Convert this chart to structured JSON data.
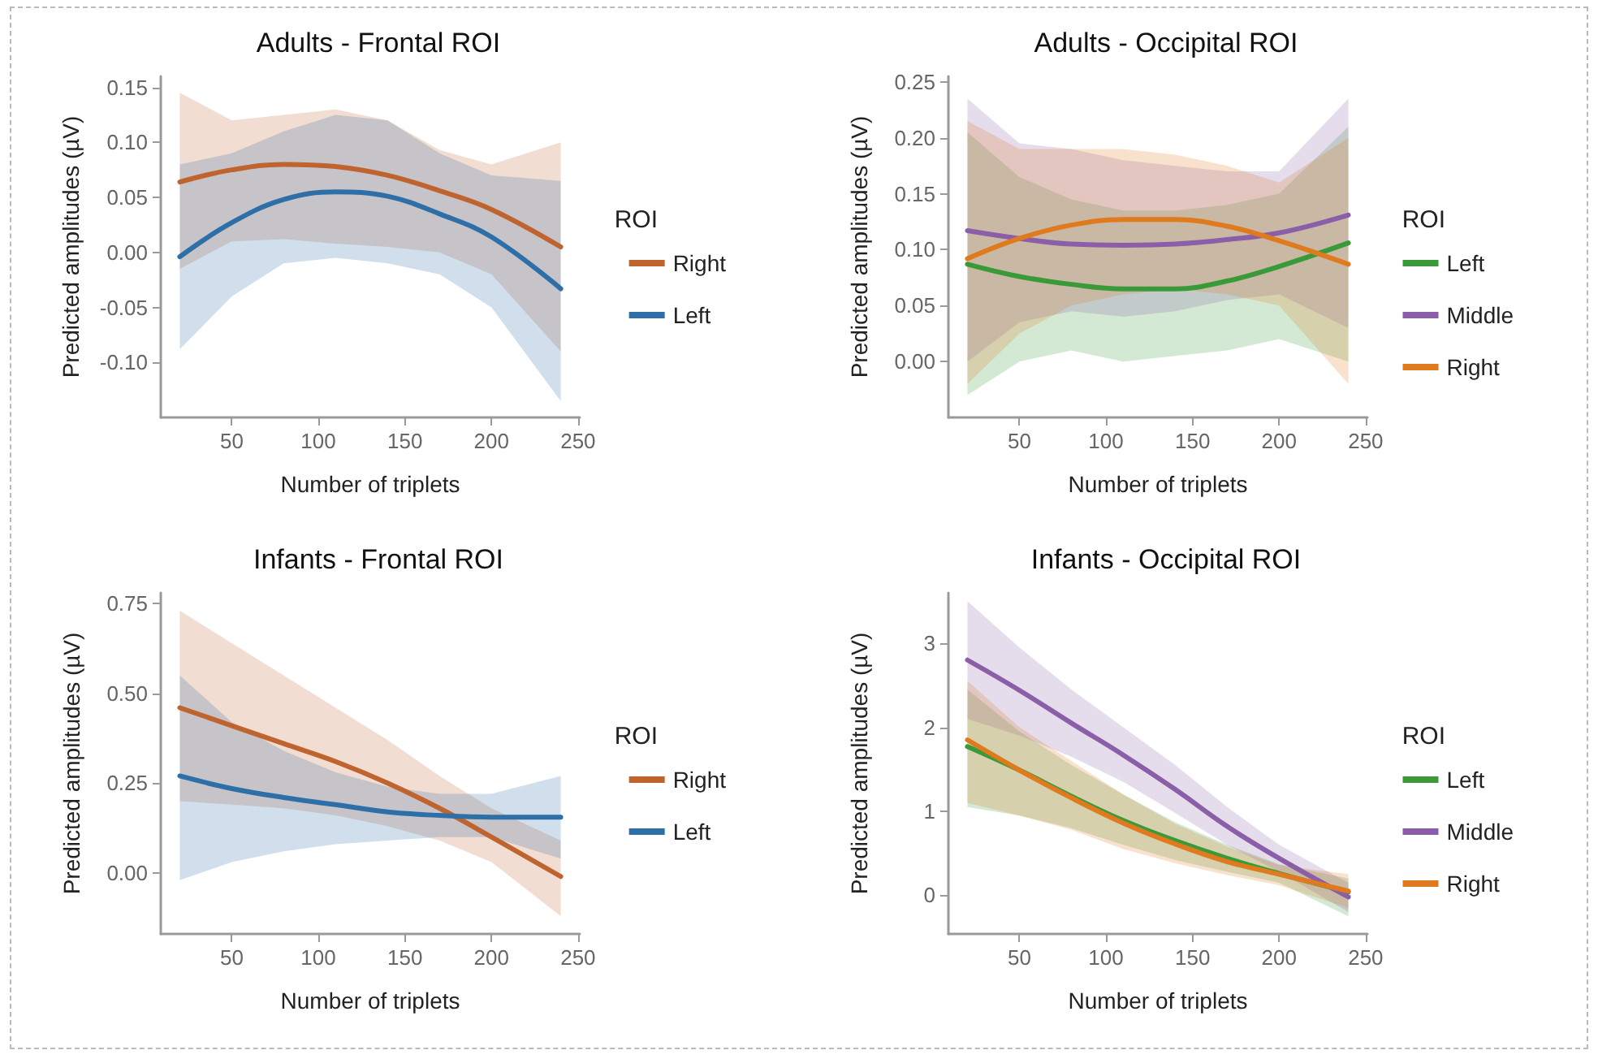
{
  "chart_data": [
    {
      "type": "line",
      "title": "Adults - Frontal ROI",
      "xlabel": "Number of triplets",
      "ylabel": "Predicted amplitudes (µV)",
      "legend_title": "ROI",
      "legend": "right",
      "grid": false,
      "marker": "none",
      "line_style": "solid",
      "x": [
        20,
        50,
        80,
        110,
        140,
        170,
        200,
        240
      ],
      "xlim": [
        9,
        251
      ],
      "xticks": [
        50,
        100,
        150,
        200,
        250
      ],
      "ylim": [
        -0.15,
        0.16
      ],
      "yticks": [
        {
          "value": -0.1,
          "label": "-0.10"
        },
        {
          "value": -0.05,
          "label": "-0.05"
        },
        {
          "value": 0,
          "label": "0.00"
        },
        {
          "value": 0.05,
          "label": "0.05"
        },
        {
          "value": 0.1,
          "label": "0.10"
        },
        {
          "value": 0.15,
          "label": "0.15"
        }
      ],
      "series": [
        {
          "name": "Right",
          "color": "#c0642f",
          "values": [
            0.064,
            0.075,
            0.08,
            0.078,
            0.07,
            0.056,
            0.039,
            0.005
          ],
          "lower": [
            -0.015,
            0.01,
            0.012,
            0.008,
            0.005,
            0.0,
            -0.02,
            -0.09
          ],
          "upper": [
            0.145,
            0.12,
            0.125,
            0.13,
            0.12,
            0.093,
            0.08,
            0.1
          ]
        },
        {
          "name": "Left",
          "color": "#2f6fa8",
          "values": [
            -0.004,
            0.027,
            0.048,
            0.055,
            0.051,
            0.035,
            0.014,
            -0.033
          ],
          "lower": [
            -0.088,
            -0.04,
            -0.01,
            -0.005,
            -0.01,
            -0.02,
            -0.05,
            -0.135
          ],
          "upper": [
            0.08,
            0.09,
            0.11,
            0.125,
            0.12,
            0.09,
            0.07,
            0.065
          ]
        }
      ]
    },
    {
      "type": "line",
      "title": "Adults - Occipital ROI",
      "xlabel": "Number of triplets",
      "ylabel": "Predicted amplitudes (µV)",
      "legend_title": "ROI",
      "legend": "right",
      "grid": false,
      "marker": "none",
      "line_style": "solid",
      "x": [
        20,
        50,
        80,
        110,
        140,
        170,
        200,
        240
      ],
      "xlim": [
        9,
        251
      ],
      "xticks": [
        50,
        100,
        150,
        200,
        250
      ],
      "ylim": [
        -0.05,
        0.255
      ],
      "yticks": [
        {
          "value": 0,
          "label": "0.00"
        },
        {
          "value": 0.05,
          "label": "0.05"
        },
        {
          "value": 0.1,
          "label": "0.10"
        },
        {
          "value": 0.15,
          "label": "0.15"
        },
        {
          "value": 0.2,
          "label": "0.20"
        },
        {
          "value": 0.25,
          "label": "0.25"
        }
      ],
      "series": [
        {
          "name": "Left",
          "color": "#3a9a3a",
          "values": [
            0.087,
            0.076,
            0.069,
            0.065,
            0.065,
            0.072,
            0.085,
            0.106
          ],
          "lower": [
            -0.03,
            0.0,
            0.01,
            0.0,
            0.005,
            0.01,
            0.02,
            0.0
          ],
          "upper": [
            0.205,
            0.165,
            0.145,
            0.135,
            0.135,
            0.14,
            0.15,
            0.21
          ]
        },
        {
          "name": "Middle",
          "color": "#8a5fa8",
          "values": [
            0.117,
            0.11,
            0.105,
            0.104,
            0.105,
            0.109,
            0.115,
            0.131
          ],
          "lower": [
            0.0,
            0.035,
            0.045,
            0.04,
            0.045,
            0.055,
            0.06,
            0.03
          ],
          "upper": [
            0.235,
            0.195,
            0.19,
            0.18,
            0.175,
            0.17,
            0.17,
            0.235
          ]
        },
        {
          "name": "Right",
          "color": "#e07a1f",
          "values": [
            0.092,
            0.11,
            0.122,
            0.127,
            0.127,
            0.121,
            0.108,
            0.087
          ],
          "lower": [
            -0.02,
            0.025,
            0.05,
            0.06,
            0.065,
            0.06,
            0.05,
            -0.02
          ],
          "upper": [
            0.215,
            0.19,
            0.19,
            0.19,
            0.185,
            0.175,
            0.16,
            0.2
          ]
        }
      ]
    },
    {
      "type": "line",
      "title": "Infants - Frontal ROI",
      "xlabel": "Number of triplets",
      "ylabel": "Predicted amplitudes (µV)",
      "legend_title": "ROI",
      "legend": "right",
      "grid": false,
      "marker": "none",
      "line_style": "solid",
      "x": [
        20,
        50,
        80,
        110,
        140,
        170,
        200,
        240
      ],
      "xlim": [
        9,
        251
      ],
      "xticks": [
        50,
        100,
        150,
        200,
        250
      ],
      "ylim": [
        -0.17,
        0.78
      ],
      "yticks": [
        {
          "value": 0,
          "label": "0.00"
        },
        {
          "value": 0.25,
          "label": "0.25"
        },
        {
          "value": 0.5,
          "label": "0.50"
        },
        {
          "value": 0.75,
          "label": "0.75"
        }
      ],
      "series": [
        {
          "name": "Right",
          "color": "#c0642f",
          "values": [
            0.46,
            0.41,
            0.36,
            0.31,
            0.25,
            0.18,
            0.1,
            -0.01
          ],
          "lower": [
            0.2,
            0.19,
            0.18,
            0.16,
            0.13,
            0.09,
            0.03,
            -0.12
          ],
          "upper": [
            0.73,
            0.64,
            0.55,
            0.46,
            0.37,
            0.27,
            0.18,
            0.09
          ]
        },
        {
          "name": "Left",
          "color": "#2f6fa8",
          "values": [
            0.27,
            0.235,
            0.21,
            0.19,
            0.17,
            0.16,
            0.155,
            0.155
          ],
          "lower": [
            -0.02,
            0.03,
            0.06,
            0.08,
            0.09,
            0.1,
            0.1,
            0.04
          ],
          "upper": [
            0.55,
            0.42,
            0.34,
            0.28,
            0.24,
            0.22,
            0.22,
            0.27
          ]
        }
      ]
    },
    {
      "type": "line",
      "title": "Infants - Occipital ROI",
      "xlabel": "Number of triplets",
      "ylabel": "Predicted amplitudes (µV)",
      "legend_title": "ROI",
      "legend": "right",
      "grid": false,
      "marker": "none",
      "line_style": "solid",
      "x": [
        20,
        50,
        80,
        110,
        140,
        170,
        200,
        240
      ],
      "xlim": [
        9,
        251
      ],
      "xticks": [
        50,
        100,
        150,
        200,
        250
      ],
      "ylim": [
        -0.46,
        3.6
      ],
      "yticks": [
        0,
        1,
        2,
        3
      ],
      "series": [
        {
          "name": "Left",
          "color": "#3a9a3a",
          "values": [
            1.77,
            1.49,
            1.18,
            0.89,
            0.65,
            0.44,
            0.26,
            0.04
          ],
          "lower": [
            1.05,
            0.95,
            0.8,
            0.6,
            0.42,
            0.28,
            0.15,
            -0.25
          ],
          "upper": [
            2.45,
            1.95,
            1.55,
            1.2,
            0.87,
            0.6,
            0.37,
            0.2
          ]
        },
        {
          "name": "Middle",
          "color": "#8a5fa8",
          "values": [
            2.8,
            2.44,
            2.05,
            1.67,
            1.26,
            0.82,
            0.44,
            -0.02
          ],
          "lower": [
            2.1,
            1.9,
            1.65,
            1.35,
            0.98,
            0.6,
            0.28,
            -0.2
          ],
          "upper": [
            3.5,
            2.95,
            2.45,
            2.0,
            1.55,
            1.05,
            0.6,
            0.15
          ]
        },
        {
          "name": "Right",
          "color": "#e07a1f",
          "values": [
            1.85,
            1.49,
            1.16,
            0.86,
            0.61,
            0.4,
            0.25,
            0.05
          ],
          "lower": [
            1.1,
            0.95,
            0.78,
            0.55,
            0.38,
            0.24,
            0.12,
            -0.15
          ],
          "upper": [
            2.55,
            2.0,
            1.6,
            1.2,
            0.85,
            0.58,
            0.36,
            0.25
          ]
        }
      ]
    }
  ]
}
